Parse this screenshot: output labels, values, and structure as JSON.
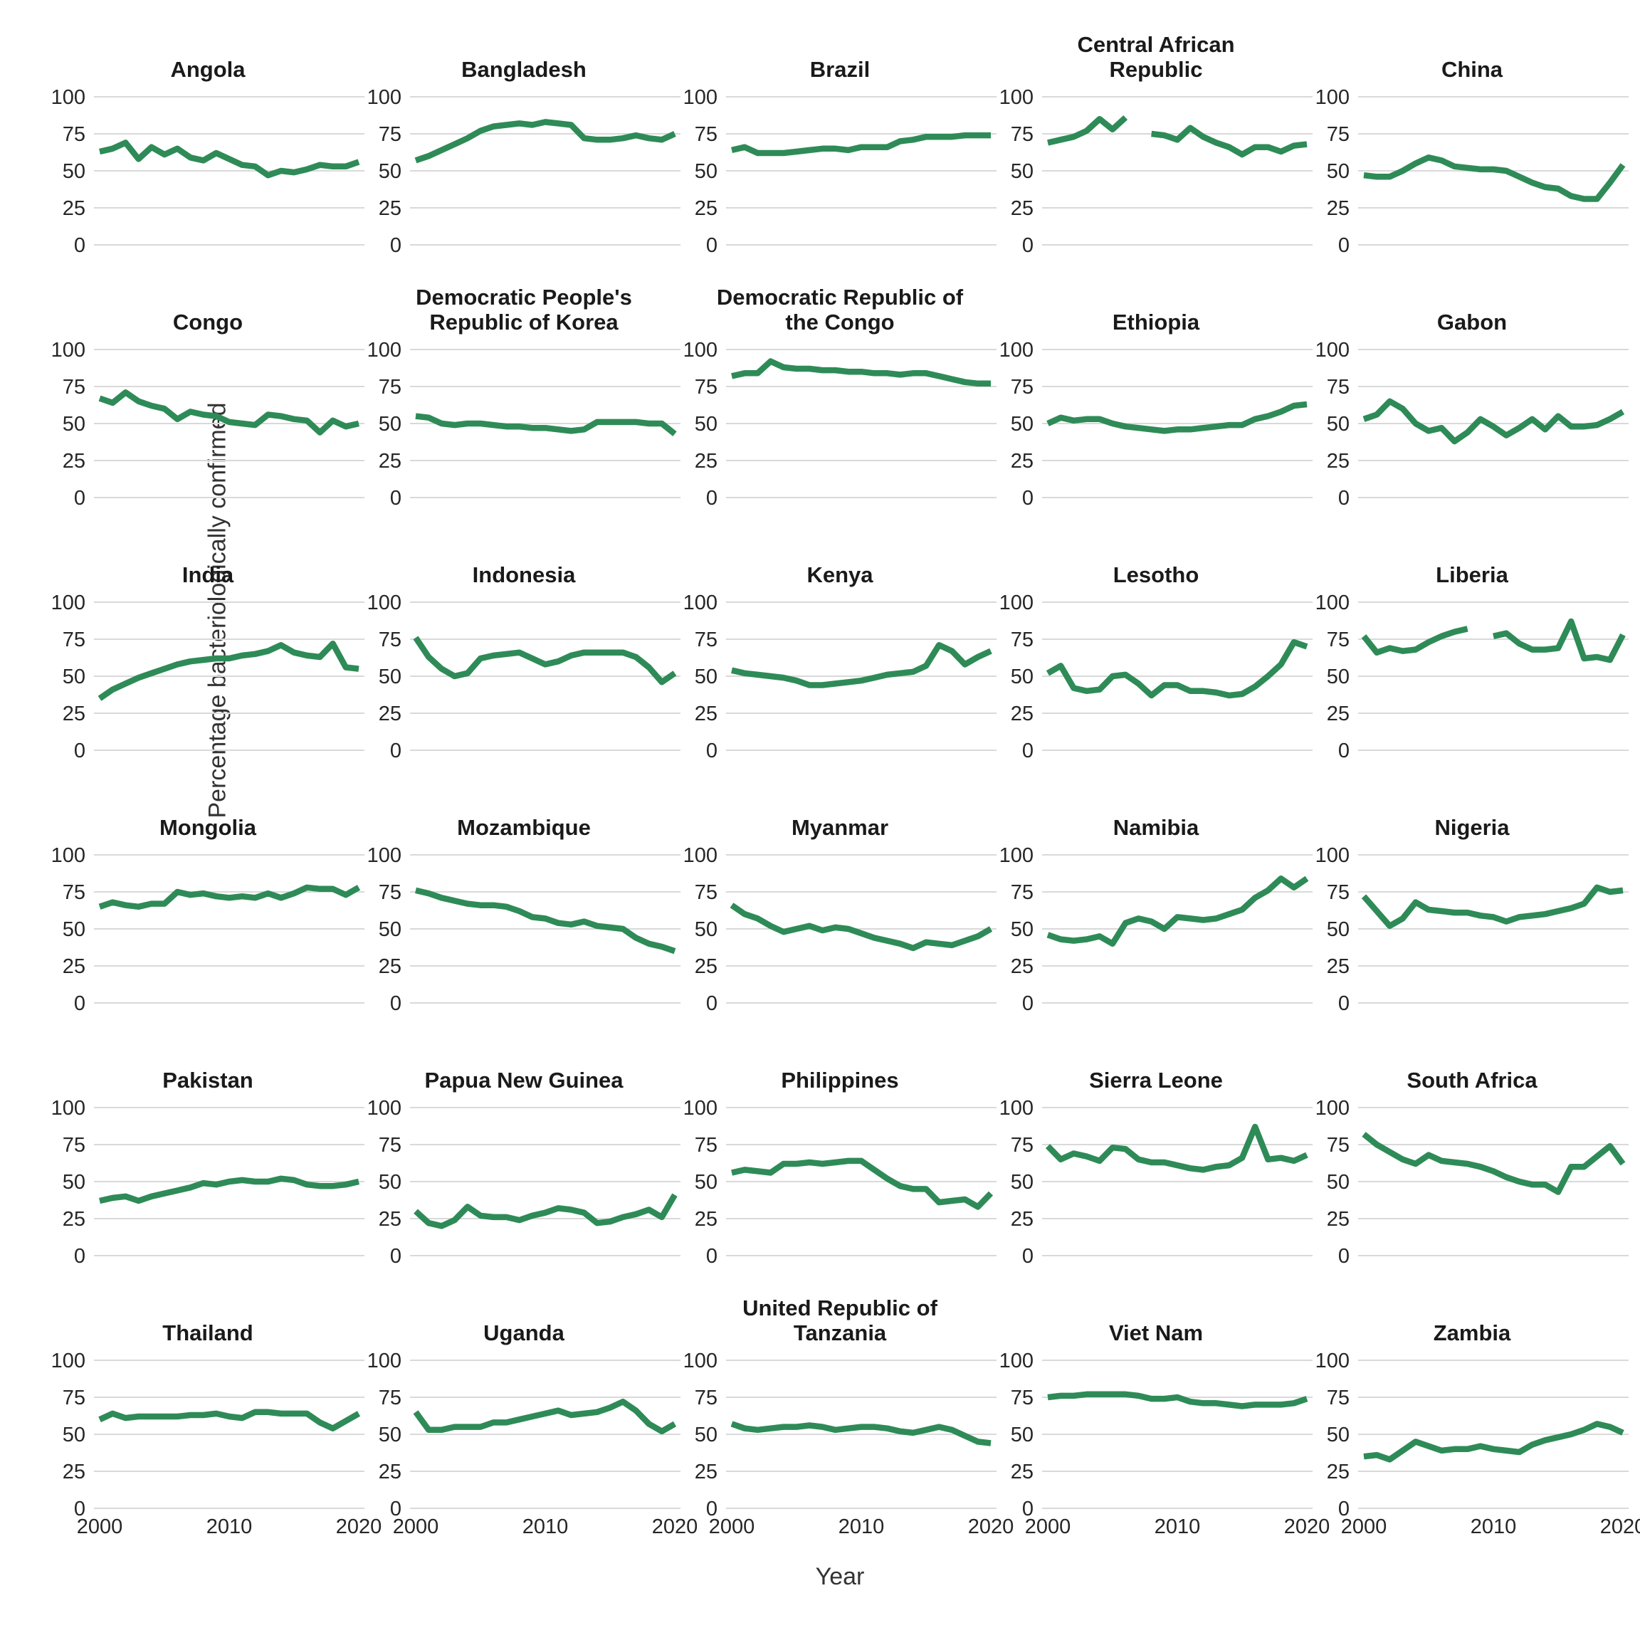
{
  "chart_data": {
    "type": "line",
    "title": "",
    "xlabel": "Year",
    "ylabel": "Percentage bacteriologically confirmed",
    "ylim": [
      0,
      100
    ],
    "yticks": [
      0,
      25,
      50,
      75,
      100
    ],
    "xticks": [
      2000,
      2010,
      2020
    ],
    "grid": "horizontal gridlines only, light gray, no panel borders",
    "legend": "none",
    "layout": {
      "rows": 6,
      "cols": 5,
      "facet_titles": "bold, centered above each panel"
    },
    "line_color": "#2e8b57",
    "x": [
      2000,
      2001,
      2002,
      2003,
      2004,
      2005,
      2006,
      2007,
      2008,
      2009,
      2010,
      2011,
      2012,
      2013,
      2014,
      2015,
      2016,
      2017,
      2018,
      2019,
      2020
    ],
    "series": [
      {
        "name": "Angola",
        "values": [
          63,
          65,
          69,
          58,
          66,
          61,
          65,
          59,
          57,
          62,
          58,
          54,
          53,
          47,
          50,
          49,
          51,
          54,
          53,
          53,
          56
        ]
      },
      {
        "name": "Bangladesh",
        "values": [
          57,
          60,
          64,
          68,
          72,
          77,
          80,
          81,
          82,
          81,
          83,
          82,
          81,
          72,
          71,
          71,
          72,
          74,
          72,
          71,
          75
        ]
      },
      {
        "name": "Brazil",
        "values": [
          64,
          66,
          62,
          62,
          62,
          63,
          64,
          65,
          65,
          64,
          66,
          66,
          66,
          70,
          71,
          73,
          73,
          73,
          74,
          74,
          74
        ]
      },
      {
        "name": "Central African Republic",
        "values": [
          69,
          71,
          73,
          77,
          85,
          78,
          86,
          null,
          75,
          74,
          71,
          79,
          73,
          69,
          66,
          61,
          66,
          66,
          63,
          67,
          68
        ]
      },
      {
        "name": "China",
        "values": [
          47,
          46,
          46,
          50,
          55,
          59,
          57,
          53,
          52,
          51,
          51,
          50,
          46,
          42,
          39,
          38,
          33,
          31,
          31,
          42,
          54
        ]
      },
      {
        "name": "Congo",
        "values": [
          67,
          64,
          71,
          65,
          62,
          60,
          53,
          58,
          56,
          55,
          51,
          50,
          49,
          56,
          55,
          53,
          52,
          44,
          52,
          48,
          50
        ]
      },
      {
        "name": "Democratic People's Republic of Korea",
        "values": [
          55,
          54,
          50,
          49,
          50,
          50,
          49,
          48,
          48,
          47,
          47,
          46,
          45,
          46,
          51,
          51,
          51,
          51,
          50,
          50,
          43
        ]
      },
      {
        "name": "Democratic Republic of the Congo",
        "values": [
          82,
          84,
          84,
          92,
          88,
          87,
          87,
          86,
          86,
          85,
          85,
          84,
          84,
          83,
          84,
          84,
          82,
          80,
          78,
          77,
          77
        ]
      },
      {
        "name": "Ethiopia",
        "values": [
          50,
          54,
          52,
          53,
          53,
          50,
          48,
          47,
          46,
          45,
          46,
          46,
          47,
          48,
          49,
          49,
          53,
          55,
          58,
          62,
          63
        ]
      },
      {
        "name": "Gabon",
        "values": [
          53,
          56,
          65,
          60,
          50,
          45,
          47,
          38,
          44,
          53,
          48,
          42,
          47,
          53,
          46,
          55,
          48,
          48,
          49,
          53,
          58
        ]
      },
      {
        "name": "India",
        "values": [
          35,
          41,
          45,
          49,
          52,
          55,
          58,
          60,
          61,
          62,
          62,
          64,
          65,
          67,
          71,
          66,
          64,
          63,
          72,
          56,
          55
        ]
      },
      {
        "name": "Indonesia",
        "values": [
          76,
          63,
          55,
          50,
          52,
          62,
          64,
          65,
          66,
          62,
          58,
          60,
          64,
          66,
          66,
          66,
          66,
          63,
          56,
          46,
          52
        ]
      },
      {
        "name": "Kenya",
        "values": [
          54,
          52,
          51,
          50,
          49,
          47,
          44,
          44,
          45,
          46,
          47,
          49,
          51,
          52,
          53,
          57,
          71,
          67,
          58,
          63,
          67
        ]
      },
      {
        "name": "Lesotho",
        "values": [
          52,
          57,
          42,
          40,
          41,
          50,
          51,
          45,
          37,
          44,
          44,
          40,
          40,
          39,
          37,
          38,
          43,
          50,
          58,
          73,
          70
        ]
      },
      {
        "name": "Liberia",
        "values": [
          77,
          66,
          69,
          67,
          68,
          73,
          77,
          80,
          82,
          null,
          77,
          79,
          72,
          68,
          68,
          69,
          87,
          62,
          63,
          61,
          78
        ]
      },
      {
        "name": "Mongolia",
        "values": [
          65,
          68,
          66,
          65,
          67,
          67,
          75,
          73,
          74,
          72,
          71,
          72,
          71,
          74,
          71,
          74,
          78,
          77,
          77,
          73,
          78
        ]
      },
      {
        "name": "Mozambique",
        "values": [
          76,
          74,
          71,
          69,
          67,
          66,
          66,
          65,
          62,
          58,
          57,
          54,
          53,
          55,
          52,
          51,
          50,
          44,
          40,
          38,
          35
        ]
      },
      {
        "name": "Myanmar",
        "values": [
          66,
          60,
          57,
          52,
          48,
          50,
          52,
          49,
          51,
          50,
          47,
          44,
          42,
          40,
          37,
          41,
          40,
          39,
          42,
          45,
          50
        ]
      },
      {
        "name": "Namibia",
        "values": [
          46,
          43,
          42,
          43,
          45,
          40,
          54,
          57,
          55,
          50,
          58,
          57,
          56,
          57,
          60,
          63,
          71,
          76,
          84,
          78,
          84
        ]
      },
      {
        "name": "Nigeria",
        "values": [
          72,
          62,
          52,
          57,
          68,
          63,
          62,
          61,
          61,
          59,
          58,
          55,
          58,
          59,
          60,
          62,
          64,
          67,
          78,
          75,
          76
        ]
      },
      {
        "name": "Pakistan",
        "values": [
          37,
          39,
          40,
          37,
          40,
          42,
          44,
          46,
          49,
          48,
          50,
          51,
          50,
          50,
          52,
          51,
          48,
          47,
          47,
          48,
          50
        ]
      },
      {
        "name": "Papua New Guinea",
        "values": [
          30,
          22,
          20,
          24,
          33,
          27,
          26,
          26,
          24,
          27,
          29,
          32,
          31,
          29,
          22,
          23,
          26,
          28,
          31,
          26,
          41
        ]
      },
      {
        "name": "Philippines",
        "values": [
          56,
          58,
          57,
          56,
          62,
          62,
          63,
          62,
          63,
          64,
          64,
          58,
          52,
          47,
          45,
          45,
          36,
          37,
          38,
          33,
          42
        ]
      },
      {
        "name": "Sierra Leone",
        "values": [
          74,
          65,
          69,
          67,
          64,
          73,
          72,
          65,
          63,
          63,
          61,
          59,
          58,
          60,
          61,
          66,
          87,
          65,
          66,
          64,
          68
        ]
      },
      {
        "name": "South Africa",
        "values": [
          82,
          75,
          70,
          65,
          62,
          68,
          64,
          63,
          62,
          60,
          57,
          53,
          50,
          48,
          48,
          43,
          60,
          60,
          67,
          74,
          62
        ]
      },
      {
        "name": "Thailand",
        "values": [
          60,
          64,
          61,
          62,
          62,
          62,
          62,
          63,
          63,
          64,
          62,
          61,
          65,
          65,
          64,
          64,
          64,
          58,
          54,
          59,
          64
        ]
      },
      {
        "name": "Uganda",
        "values": [
          65,
          53,
          53,
          55,
          55,
          55,
          58,
          58,
          60,
          62,
          64,
          66,
          63,
          64,
          65,
          68,
          72,
          66,
          57,
          52,
          57
        ]
      },
      {
        "name": "United Republic of Tanzania",
        "values": [
          57,
          54,
          53,
          54,
          55,
          55,
          56,
          55,
          53,
          54,
          55,
          55,
          54,
          52,
          51,
          53,
          55,
          53,
          49,
          45,
          44
        ]
      },
      {
        "name": "Viet Nam",
        "values": [
          75,
          76,
          76,
          77,
          77,
          77,
          77,
          76,
          74,
          74,
          75,
          72,
          71,
          71,
          70,
          69,
          70,
          70,
          70,
          71,
          74
        ]
      },
      {
        "name": "Zambia",
        "values": [
          35,
          36,
          33,
          39,
          45,
          42,
          39,
          40,
          40,
          42,
          40,
          39,
          38,
          43,
          46,
          48,
          50,
          53,
          57,
          55,
          51
        ]
      }
    ],
    "style": {
      "gridline_color": "#d9d9d9",
      "tick_label_color": "#262626",
      "background": "#ffffff"
    }
  }
}
